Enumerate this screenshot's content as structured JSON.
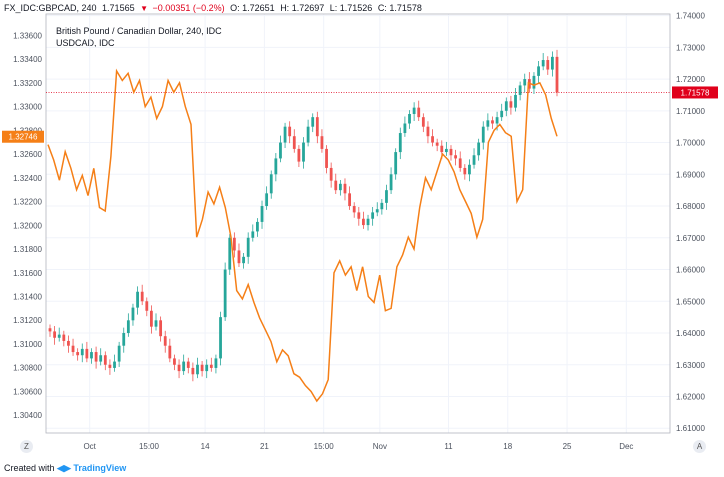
{
  "header": {
    "symbol": "FX_IDC:GBPCAD, 240",
    "open_value": "1.71565",
    "change": "−0.00351 (−0.2%)",
    "o": "O: 1.72651",
    "h": "H: 1.72697",
    "l": "L: 1.71526",
    "c": "C: 1.71578",
    "down_color": "#e0001b"
  },
  "legend": {
    "primary": "British Pound / Canadian Dollar, 240, IDC",
    "secondary": "USDCAD, IDC"
  },
  "footer": {
    "created_with": "Created with",
    "brand": "TradingView"
  },
  "buttons": {
    "left": "Z",
    "right": "A"
  },
  "chart_data": {
    "type": "candlestick+line",
    "left_axis": {
      "series": "USDCAD",
      "range": [
        1.3025,
        1.3378
      ],
      "ticks": [
        "1.33600",
        "1.33400",
        "1.33200",
        "1.33000",
        "1.32800",
        "1.32600",
        "1.32400",
        "1.32200",
        "1.32000",
        "1.31800",
        "1.31600",
        "1.31400",
        "1.31200",
        "1.31000",
        "1.30800",
        "1.30600",
        "1.30400"
      ],
      "current_label": "1.32746",
      "current_value": 1.32746
    },
    "right_axis": {
      "series": "GBPCAD",
      "range": [
        1.6085,
        1.7405
      ],
      "ticks": [
        "1.74000",
        "1.73000",
        "1.72000",
        "1.71000",
        "1.70000",
        "1.69000",
        "1.68000",
        "1.67000",
        "1.66000",
        "1.65000",
        "1.64000",
        "1.63000",
        "1.62000",
        "1.61000"
      ],
      "current_label": "1.71578",
      "current_value": 1.71578
    },
    "x_ticks": [
      {
        "label": "Oct",
        "pos": 0.07
      },
      {
        "label": "15:00",
        "pos": 0.165
      },
      {
        "label": "14",
        "pos": 0.255
      },
      {
        "label": "21",
        "pos": 0.35
      },
      {
        "label": "15:00",
        "pos": 0.445
      },
      {
        "label": "Nov",
        "pos": 0.535
      },
      {
        "label": "11",
        "pos": 0.645
      },
      {
        "label": "18",
        "pos": 0.74
      },
      {
        "label": "25",
        "pos": 0.835
      },
      {
        "label": "Dec",
        "pos": 0.93
      }
    ],
    "gbpcad_closes": [
      1.6405,
      1.6385,
      1.6395,
      1.6375,
      1.636,
      1.634,
      1.633,
      1.635,
      1.632,
      1.634,
      1.631,
      1.633,
      1.63,
      1.629,
      1.631,
      1.636,
      1.64,
      1.644,
      1.648,
      1.653,
      1.65,
      1.647,
      1.642,
      1.644,
      1.639,
      1.636,
      1.632,
      1.63,
      1.628,
      1.631,
      1.629,
      1.627,
      1.63,
      1.628,
      1.63,
      1.629,
      1.632,
      1.645,
      1.66,
      1.67,
      1.666,
      1.662,
      1.664,
      1.67,
      1.672,
      1.675,
      1.68,
      1.684,
      1.69,
      1.695,
      1.7,
      1.705,
      1.702,
      1.698,
      1.694,
      1.7,
      1.705,
      1.708,
      1.702,
      1.698,
      1.692,
      1.688,
      1.685,
      1.687,
      1.684,
      1.68,
      1.678,
      1.676,
      1.674,
      1.676,
      1.678,
      1.679,
      1.681,
      1.685,
      1.69,
      1.697,
      1.703,
      1.706,
      1.709,
      1.711,
      1.708,
      1.705,
      1.702,
      1.7,
      1.699,
      1.697,
      1.698,
      1.696,
      1.695,
      1.692,
      1.69,
      1.693,
      1.696,
      1.7,
      1.705,
      1.707,
      1.706,
      1.708,
      1.71,
      1.713,
      1.711,
      1.715,
      1.718,
      1.72,
      1.717,
      1.721,
      1.724,
      1.726,
      1.723,
      1.727,
      1.7158
    ],
    "usdcad_line": [
      1.3268,
      1.3255,
      1.3238,
      1.3262,
      1.3248,
      1.323,
      1.3242,
      1.3225,
      1.3248,
      1.3215,
      1.3212,
      1.3258,
      1.333,
      1.3322,
      1.3328,
      1.3312,
      1.3322,
      1.33,
      1.3308,
      1.329,
      1.33,
      1.3322,
      1.3312,
      1.332,
      1.33,
      1.3285,
      1.319,
      1.3205,
      1.3228,
      1.3218,
      1.3232,
      1.3215,
      1.319,
      1.3145,
      1.3138,
      1.315,
      1.3135,
      1.3122,
      1.3112,
      1.3102,
      1.3085,
      1.3095,
      1.309,
      1.3075,
      1.3072,
      1.3065,
      1.306,
      1.3052,
      1.3058,
      1.307,
      1.316,
      1.317,
      1.3158,
      1.3165,
      1.3145,
      1.3165,
      1.314,
      1.3135,
      1.3158,
      1.3128,
      1.313,
      1.3165,
      1.3175,
      1.319,
      1.318,
      1.3215,
      1.324,
      1.323,
      1.3245,
      1.326,
      1.3255,
      1.3245,
      1.323,
      1.322,
      1.321,
      1.319,
      1.3205,
      1.327,
      1.328,
      1.3285,
      1.3278,
      1.3275,
      1.322,
      1.323,
      1.332,
      1.3318,
      1.332,
      1.331,
      1.329,
      1.3275
    ]
  }
}
